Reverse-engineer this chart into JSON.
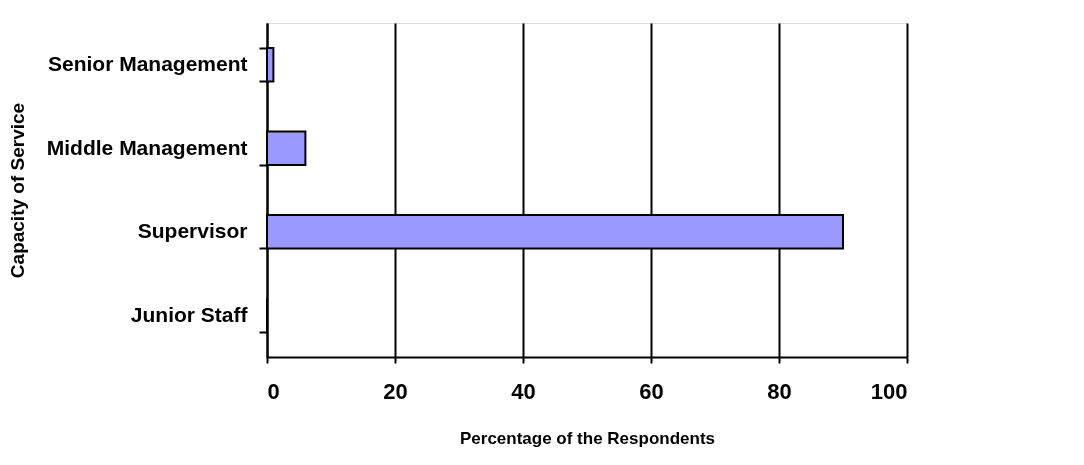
{
  "chart_data": {
    "type": "bar",
    "orientation": "horizontal",
    "xlabel": "Percentage of the Respondents",
    "ylabel": "Capacity of Service",
    "categories": [
      "Senior Management",
      "Middle Management",
      "Supervisor",
      "Junior Staff"
    ],
    "values": [
      1,
      6,
      90,
      0
    ],
    "color": "#9999ff",
    "xlim": [
      0,
      100
    ],
    "xticks": [
      0,
      20,
      40,
      60,
      80,
      100
    ],
    "grid": "x"
  }
}
